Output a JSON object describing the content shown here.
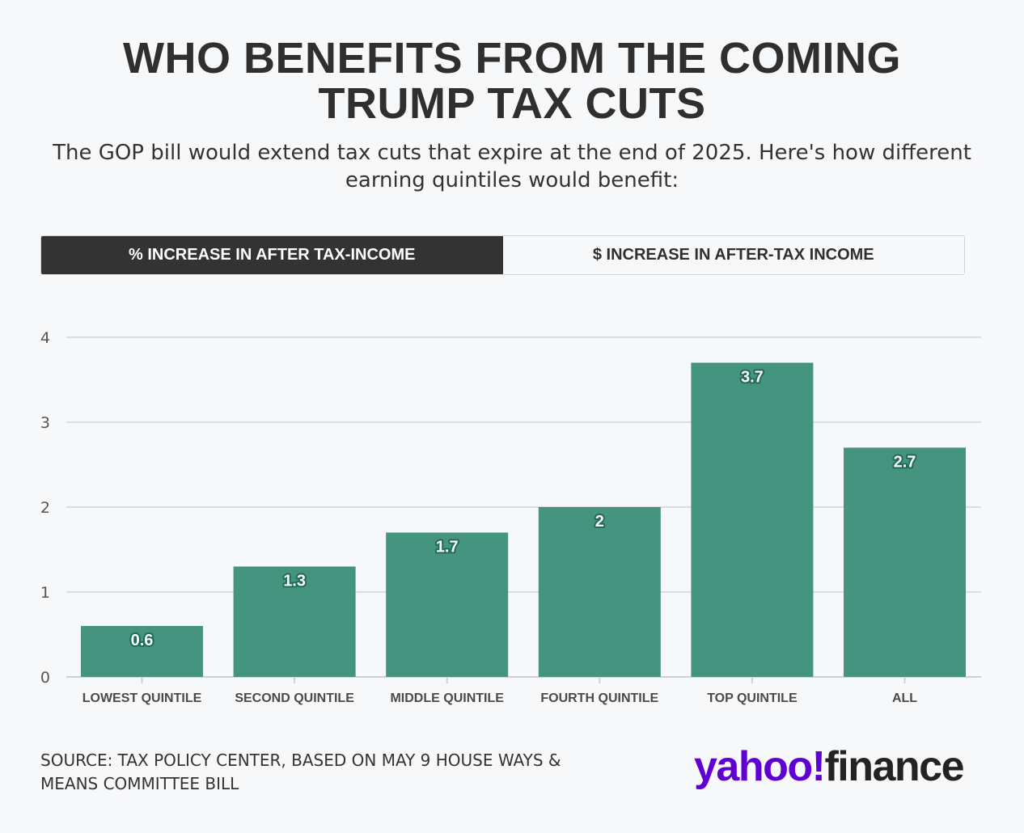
{
  "header": {
    "title_line1": "WHO BENEFITS FROM THE COMING",
    "title_line2": "TRUMP TAX CUTS",
    "subtitle": "The GOP bill would extend tax cuts that expire at the end of 2025. Here's how different earning quintiles would benefit:"
  },
  "tabs": [
    {
      "label": "% INCREASE IN AFTER TAX-INCOME",
      "active": true
    },
    {
      "label": "$ INCREASE IN AFTER-TAX INCOME",
      "active": false
    }
  ],
  "chart_data": {
    "type": "bar",
    "categories": [
      "LOWEST QUINTILE",
      "SECOND QUINTILE",
      "MIDDLE QUINTILE",
      "FOURTH QUINTILE",
      "TOP QUINTILE",
      "ALL"
    ],
    "values": [
      0.6,
      1.3,
      1.7,
      2,
      3.7,
      2.7
    ],
    "data_labels": [
      "0.6",
      "1.3",
      "1.7",
      "2",
      "3.7",
      "2.7"
    ],
    "yticks": [
      "0",
      "1",
      "2",
      "3",
      "4"
    ],
    "ylim": [
      0,
      4
    ],
    "grid": true,
    "bar_color": "#44947f",
    "label_stroke_color": "#1f6b56"
  },
  "footer": {
    "source": "SOURCE: TAX POLICY CENTER, BASED ON MAY 9 HOUSE WAYS & MEANS COMMITTEE BILL",
    "logo_part1": "yahoo!",
    "logo_part2": "finance",
    "logo_color": "#6001d2"
  }
}
